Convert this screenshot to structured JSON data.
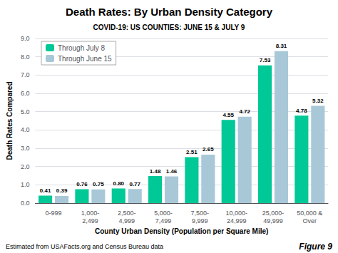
{
  "chart_data": {
    "type": "bar",
    "title": "Death Rates: By Urban Density Category",
    "subtitle": "COVID-19: US COUNTIES: JUNE 15 & JULY 9",
    "xlabel": "County Urban Density (Population per Square Mile)",
    "ylabel": "Death Rates Compared",
    "categories": [
      "0-999",
      "1,000-\n2,499",
      "2,500-\n4,999",
      "5,000-\n7,499",
      "7,500-\n9,999",
      "10,000-\n24,999",
      "25,000-\n49,999",
      "50,000 &\nOver"
    ],
    "series": [
      {
        "name": "Through July 8",
        "color": "#00C896",
        "values": [
          0.41,
          0.76,
          0.8,
          1.48,
          2.51,
          4.55,
          7.53,
          4.78
        ],
        "value_labels": [
          "0.41",
          "0.76",
          "0.80",
          "1.48",
          "2.51",
          "4.55",
          "7.53",
          "4.78"
        ]
      },
      {
        "name": "Through June 15",
        "color": "#A8C8D8",
        "values": [
          0.39,
          0.75,
          0.77,
          1.46,
          2.65,
          4.72,
          8.31,
          5.32
        ],
        "value_labels": [
          "0.39",
          "0.75",
          "0.77",
          "1.46",
          "2.65",
          "4.72",
          "8.31",
          "5.32"
        ]
      }
    ],
    "ylim": [
      0,
      9.0
    ],
    "yticks": [
      {
        "value": 0.0,
        "label": "0.0"
      },
      {
        "value": 1.0,
        "label": "1.0"
      },
      {
        "value": 2.0,
        "label": "2.0"
      },
      {
        "value": 3.0,
        "label": "3.0"
      },
      {
        "value": 4.0,
        "label": "4.0"
      },
      {
        "value": 5.0,
        "label": "5.0"
      },
      {
        "value": 6.0,
        "label": "6.0"
      },
      {
        "value": 7.0,
        "label": "7.0"
      },
      {
        "value": 8.0,
        "label": "8.0"
      },
      {
        "value": 9.0,
        "label": "9.0"
      }
    ],
    "grid": true,
    "legend": "upper left",
    "data_labels": true,
    "annotations": [
      "Estimated from USAFacts.org and Census Bureau data",
      "Figure 9"
    ]
  }
}
